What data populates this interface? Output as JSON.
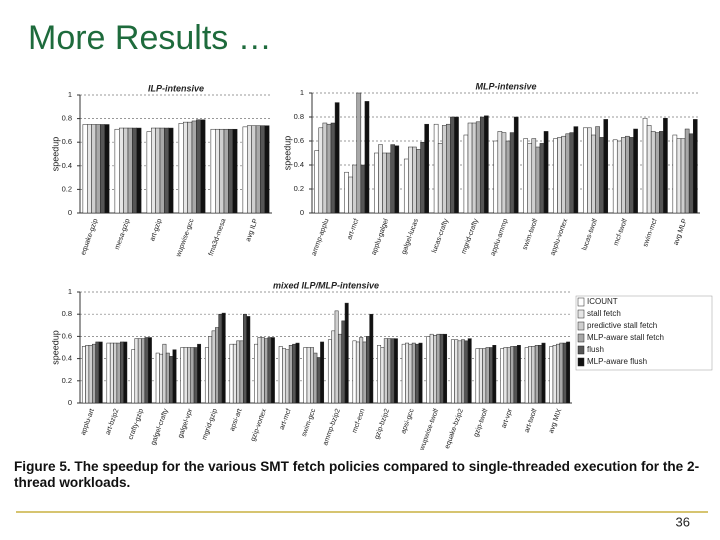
{
  "title": "More Results …",
  "chart_data": [
    {
      "type": "bar",
      "title": "ILP-intensive",
      "ylabel": "speedup",
      "categories": [
        "equake-gzip",
        "mesa-gzip",
        "art-gzip",
        "wupwise-gcc",
        "fma3d-mesa",
        "avg ILP"
      ],
      "ylim": [
        0,
        1
      ],
      "yticks": [
        0,
        0.2,
        0.4,
        0.6,
        0.8,
        1
      ],
      "grid": true,
      "series": [
        {
          "color": "#ffffff",
          "values": [
            0.75,
            0.71,
            0.69,
            0.76,
            0.71,
            0.73
          ]
        },
        {
          "color": "#e6e6e6",
          "values": [
            0.75,
            0.72,
            0.72,
            0.77,
            0.71,
            0.74
          ]
        },
        {
          "color": "#cfcfcf",
          "values": [
            0.75,
            0.72,
            0.72,
            0.77,
            0.71,
            0.74
          ]
        },
        {
          "color": "#a8a8a8",
          "values": [
            0.75,
            0.72,
            0.72,
            0.78,
            0.71,
            0.74
          ]
        },
        {
          "color": "#555555",
          "values": [
            0.75,
            0.72,
            0.72,
            0.79,
            0.71,
            0.74
          ]
        },
        {
          "color": "#111111",
          "values": [
            0.75,
            0.72,
            0.72,
            0.79,
            0.71,
            0.74
          ]
        }
      ]
    },
    {
      "type": "bar",
      "title": "MLP-intensive",
      "ylabel": "speedup",
      "categories": [
        "ammp-applu",
        "art-mcf",
        "applu-galgel",
        "galgel-lucas",
        "lucas-crafty",
        "mgrid-crafty",
        "applu-ammp",
        "swim-twolf",
        "applu-vortex",
        "lucas-twolf",
        "mcf-twolf",
        "swim-mcf",
        "avg MLP"
      ],
      "ylim": [
        0,
        1
      ],
      "yticks": [
        0,
        0.2,
        0.4,
        0.6,
        0.8,
        1
      ],
      "grid": true,
      "series": [
        {
          "color": "#ffffff",
          "values": [
            0.52,
            0.34,
            0.5,
            0.45,
            0.74,
            0.65,
            0.6,
            0.62,
            0.62,
            0.71,
            0.61,
            0.79,
            0.65
          ]
        },
        {
          "color": "#e6e6e6",
          "values": [
            0.71,
            0.3,
            0.57,
            0.55,
            0.58,
            0.75,
            0.68,
            0.58,
            0.63,
            0.71,
            0.6,
            0.73,
            0.62
          ]
        },
        {
          "color": "#cfcfcf",
          "values": [
            0.75,
            0.4,
            0.5,
            0.55,
            0.73,
            0.75,
            0.67,
            0.62,
            0.64,
            0.65,
            0.63,
            0.68,
            0.62
          ]
        },
        {
          "color": "#a8a8a8",
          "values": [
            0.74,
            1.0,
            0.5,
            0.53,
            0.74,
            0.76,
            0.6,
            0.55,
            0.66,
            0.72,
            0.64,
            0.67,
            0.7
          ]
        },
        {
          "color": "#555555",
          "values": [
            0.75,
            0.4,
            0.57,
            0.59,
            0.8,
            0.8,
            0.67,
            0.58,
            0.67,
            0.63,
            0.63,
            0.68,
            0.66
          ]
        },
        {
          "color": "#111111",
          "values": [
            0.92,
            0.93,
            0.56,
            0.74,
            0.8,
            0.81,
            0.8,
            0.68,
            0.72,
            0.78,
            0.7,
            0.79,
            0.78
          ]
        }
      ]
    },
    {
      "type": "bar",
      "title": "mixed ILP/MLP-intensive",
      "ylabel": "speedup",
      "categories": [
        "applu-art",
        "art-bzip2",
        "crafty-gzip",
        "galgel-crafty",
        "galgel-vpr",
        "mgrid-gzip",
        "apsi-art",
        "gzip-vortex",
        "art-mcf",
        "swim-gcc",
        "ammp-bzip2",
        "mcf-eon",
        "gzip-bzip2",
        "apsi-gcc",
        "wupwise-twolf",
        "equake-bzip2",
        "gzip-twolf",
        "art-vpr",
        "art-twolf",
        "avg MIX"
      ],
      "ylim": [
        0,
        1
      ],
      "yticks": [
        0,
        0.2,
        0.4,
        0.6,
        0.8,
        1
      ],
      "grid": true,
      "legend": "right",
      "series": [
        {
          "name": "ICOUNT",
          "color": "#ffffff",
          "values": [
            0.51,
            0.54,
            0.48,
            0.45,
            0.5,
            0.5,
            0.53,
            0.53,
            0.51,
            0.5,
            0.57,
            0.56,
            0.52,
            0.53,
            0.6,
            0.57,
            0.49,
            0.49,
            0.5,
            0.51
          ]
        },
        {
          "name": "stall fetch",
          "color": "#e6e6e6",
          "values": [
            0.52,
            0.54,
            0.58,
            0.44,
            0.5,
            0.6,
            0.53,
            0.59,
            0.49,
            0.5,
            0.65,
            0.55,
            0.5,
            0.54,
            0.62,
            0.57,
            0.49,
            0.5,
            0.51,
            0.52
          ]
        },
        {
          "name": "predictive stall fetch",
          "color": "#cfcfcf",
          "values": [
            0.52,
            0.54,
            0.58,
            0.53,
            0.5,
            0.65,
            0.56,
            0.59,
            0.48,
            0.5,
            0.83,
            0.59,
            0.58,
            0.53,
            0.61,
            0.56,
            0.49,
            0.5,
            0.51,
            0.53
          ]
        },
        {
          "name": "MLP-aware stall fetch",
          "color": "#a8a8a8",
          "values": [
            0.53,
            0.54,
            0.58,
            0.45,
            0.5,
            0.68,
            0.56,
            0.58,
            0.52,
            0.45,
            0.62,
            0.55,
            0.58,
            0.54,
            0.62,
            0.57,
            0.5,
            0.51,
            0.52,
            0.54
          ]
        },
        {
          "name": "flush",
          "color": "#555555",
          "values": [
            0.55,
            0.55,
            0.59,
            0.42,
            0.5,
            0.8,
            0.8,
            0.59,
            0.53,
            0.41,
            0.74,
            0.6,
            0.58,
            0.53,
            0.62,
            0.56,
            0.5,
            0.51,
            0.52,
            0.54
          ]
        },
        {
          "name": "MLP-aware flush",
          "color": "#111111",
          "values": [
            0.55,
            0.55,
            0.59,
            0.48,
            0.53,
            0.81,
            0.78,
            0.59,
            0.54,
            0.55,
            0.9,
            0.8,
            0.58,
            0.54,
            0.62,
            0.58,
            0.52,
            0.52,
            0.54,
            0.55
          ]
        }
      ]
    }
  ],
  "caption": "Figure 5. The speedup for the various SMT fetch policies compared to single-threaded execution for the 2-thread workloads.",
  "page_number": "36"
}
